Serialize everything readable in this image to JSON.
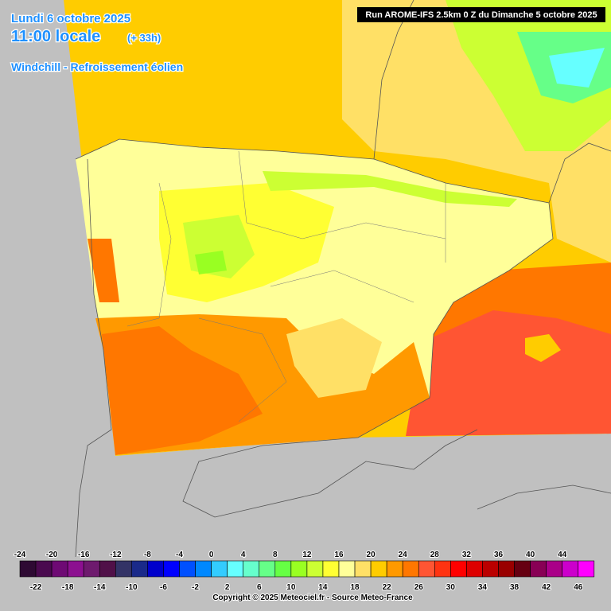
{
  "header": {
    "date": "Lundi 6 octobre 2025",
    "time": "11:00 locale",
    "lead": "(+ 33h)",
    "parameter": "Windchill - Refroissement éolien"
  },
  "run": "Run AROME-IFS 2.5km 0 Z du Dimanche 5 octobre 2025",
  "legend": {
    "values": [
      -24,
      -22,
      -20,
      -18,
      -16,
      -14,
      -12,
      -10,
      -8,
      -6,
      -4,
      -2,
      0,
      2,
      4,
      6,
      8,
      10,
      12,
      14,
      16,
      18,
      20,
      22,
      24,
      26,
      28,
      30,
      32,
      34,
      36,
      38,
      40,
      42,
      44,
      46
    ],
    "colors": [
      "#2e0a33",
      "#4a0a4f",
      "#6e0a74",
      "#8c1090",
      "#6e1a6e",
      "#501048",
      "#333366",
      "#1a2a8a",
      "#0000cc",
      "#0000ff",
      "#0050ff",
      "#0088ff",
      "#33ccff",
      "#66ffff",
      "#66ffcc",
      "#66ff88",
      "#66ff44",
      "#99ff22",
      "#ccff33",
      "#ffff33",
      "#ffff99",
      "#ffe066",
      "#ffcc00",
      "#ff9900",
      "#ff7700",
      "#ff5533",
      "#ff3311",
      "#ff0000",
      "#dd0000",
      "#bb0000",
      "#990000",
      "#660011",
      "#880055",
      "#aa0088",
      "#cc00cc",
      "#ff00ff"
    ]
  },
  "copyright": "Copyright © 2025 Meteociel.fr - Source Meteo-France"
}
